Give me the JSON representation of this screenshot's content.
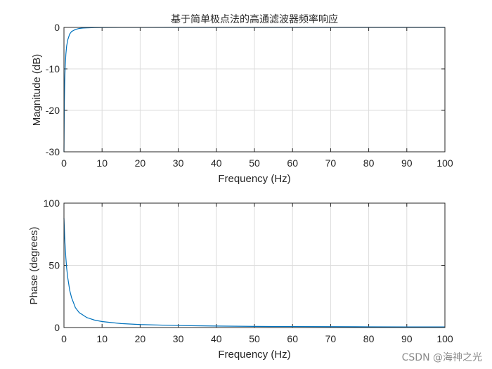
{
  "chart_data": [
    {
      "type": "line",
      "title": "基于简单极点法的高通滤波器频率响应",
      "xlabel": "Frequency (Hz)",
      "ylabel": "Magnitude (dB)",
      "xlim": [
        0,
        100
      ],
      "ylim": [
        -30,
        0
      ],
      "xticks": [
        "0",
        "10",
        "20",
        "30",
        "40",
        "50",
        "60",
        "70",
        "80",
        "90",
        "100"
      ],
      "yticks": [
        "0",
        "-10",
        "-20",
        "-30"
      ],
      "grid": true,
      "series": [
        {
          "color": "#0072bd",
          "x": [
            0,
            0.1,
            0.2,
            0.3,
            0.5,
            0.7,
            1,
            1.5,
            2,
            3,
            4,
            5,
            6,
            8,
            10,
            15,
            20,
            30,
            40,
            50,
            60,
            70,
            80,
            90,
            100
          ],
          "y": [
            -30,
            -18,
            -13,
            -10,
            -6.5,
            -4.5,
            -3,
            -1.6,
            -1,
            -0.5,
            -0.25,
            -0.15,
            -0.1,
            -0.05,
            -0.03,
            -0.01,
            -0.01,
            0,
            0,
            0,
            0,
            0,
            0,
            0,
            0
          ]
        }
      ]
    },
    {
      "type": "line",
      "title": "",
      "xlabel": "Frequency (Hz)",
      "ylabel": "Phase (degrees)",
      "xlim": [
        0,
        100
      ],
      "ylim": [
        0,
        100
      ],
      "xticks": [
        "0",
        "10",
        "20",
        "30",
        "40",
        "50",
        "60",
        "70",
        "80",
        "90",
        "100"
      ],
      "yticks": [
        "100",
        "50",
        "0"
      ],
      "grid": true,
      "series": [
        {
          "color": "#0072bd",
          "x": [
            0,
            0.1,
            0.2,
            0.3,
            0.5,
            0.7,
            1,
            1.5,
            2,
            3,
            4,
            5,
            6,
            8,
            10,
            15,
            20,
            30,
            40,
            50,
            60,
            70,
            80,
            90,
            100
          ],
          "y": [
            88,
            80,
            72,
            66,
            56,
            48,
            40,
            30,
            24,
            16,
            12,
            10,
            8,
            6,
            4.8,
            3.2,
            2.4,
            1.6,
            1.2,
            0.9,
            0.8,
            0.7,
            0.6,
            0.5,
            0.5
          ]
        }
      ]
    }
  ],
  "watermark": "CSDN @海神之光"
}
